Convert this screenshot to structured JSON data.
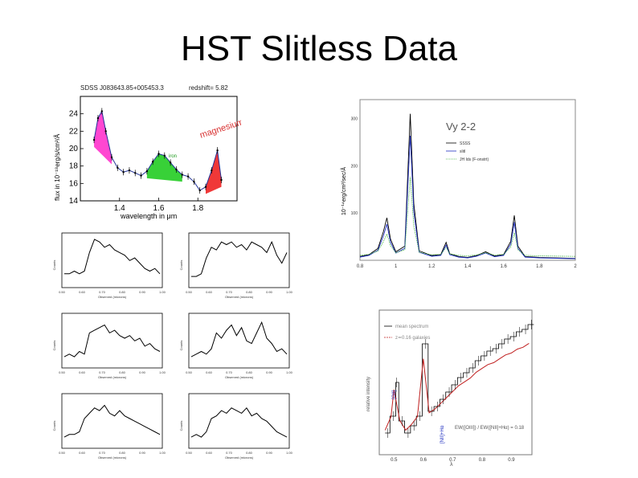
{
  "slide": {
    "title": "HST Slitless Data"
  },
  "chart_data": [
    {
      "type": "line",
      "title": "SDSS J083643.85+005453.3",
      "annotation_redshift": "redshift= 5.82",
      "region_labels": [
        "magnesium",
        "iron"
      ],
      "xlabel": "wavelength in μm",
      "ylabel": "flux in 10⁻¹⁸erg/s/cm²/Å",
      "xlim": [
        1.2,
        2.0
      ],
      "ylim": [
        14,
        26
      ],
      "x_ticks": [
        "1.4",
        "1.6",
        "1.8"
      ],
      "y_ticks": [
        "14",
        "16",
        "18",
        "20",
        "22",
        "24"
      ],
      "x": [
        1.27,
        1.29,
        1.31,
        1.33,
        1.36,
        1.39,
        1.42,
        1.45,
        1.48,
        1.51,
        1.54,
        1.57,
        1.6,
        1.63,
        1.66,
        1.69,
        1.72,
        1.75,
        1.78,
        1.81,
        1.84,
        1.87,
        1.9,
        1.92
      ],
      "values": [
        21.0,
        23.5,
        24.3,
        22.0,
        19.0,
        17.8,
        17.3,
        17.5,
        17.2,
        16.9,
        17.4,
        18.5,
        19.4,
        19.2,
        18.4,
        17.6,
        17.0,
        16.8,
        16.2,
        15.2,
        15.6,
        17.5,
        19.8,
        16.4
      ]
    },
    {
      "type": "line",
      "title": "Vy 2-2",
      "legend": [
        "SSSS",
        "slitl",
        "JH Ids (F-onstrt)"
      ],
      "x_ticks": [
        "0.8",
        "1",
        "1.2",
        "1.4",
        "1.6",
        "1.8",
        "2"
      ],
      "y_ticks": [
        "100",
        "200",
        "300"
      ],
      "xlim": [
        0.8,
        2.0
      ],
      "ylim": [
        0,
        340
      ],
      "ylabel": "10⁻¹⁴erg/cm²/sec/Å",
      "x": [
        0.8,
        0.85,
        0.9,
        0.93,
        0.95,
        0.97,
        1.0,
        1.05,
        1.08,
        1.1,
        1.13,
        1.2,
        1.25,
        1.28,
        1.3,
        1.35,
        1.4,
        1.45,
        1.5,
        1.55,
        1.6,
        1.64,
        1.66,
        1.68,
        1.72,
        1.8,
        1.9,
        2.0
      ],
      "values": [
        8,
        12,
        25,
        60,
        90,
        45,
        18,
        30,
        310,
        120,
        20,
        10,
        12,
        38,
        14,
        8,
        6,
        10,
        18,
        9,
        12,
        40,
        95,
        30,
        8,
        6,
        5,
        4
      ]
    },
    {
      "type": "line",
      "title": "",
      "legend": [
        "mean spectrum",
        "z≃0.16 galaxies"
      ],
      "annotations": [
        "[OII]",
        "[NII]+Hα",
        "EW([OIII]) / EW([NII]+Hα) = 0.18"
      ],
      "xlabel": "λ",
      "ylabel": "relative intensity",
      "xlim": [
        0.45,
        0.97
      ],
      "x_ticks": [
        "0.5",
        "0.6",
        "0.7",
        "0.8",
        "0.9"
      ],
      "x": [
        0.47,
        0.49,
        0.5,
        0.52,
        0.54,
        0.56,
        0.58,
        0.6,
        0.62,
        0.64,
        0.66,
        0.68,
        0.7,
        0.72,
        0.74,
        0.76,
        0.78,
        0.8,
        0.82,
        0.84,
        0.86,
        0.88,
        0.9,
        0.92,
        0.94,
        0.96
      ],
      "values": [
        0.9,
        1.6,
        3.0,
        1.4,
        0.9,
        1.2,
        1.6,
        4.6,
        1.8,
        2.0,
        2.3,
        2.6,
        2.9,
        3.2,
        3.4,
        3.6,
        3.9,
        4.1,
        4.3,
        4.4,
        4.6,
        4.8,
        4.9,
        5.1,
        5.2,
        5.4
      ]
    },
    {
      "type": "line",
      "title": "",
      "grid_panels": 6,
      "xlabel": "Observed (microns)",
      "ylabel": "Counts",
      "x_ticks": [
        "0.50",
        "0.60",
        "0.70",
        "0.80",
        "0.90",
        "1.00"
      ]
    }
  ]
}
